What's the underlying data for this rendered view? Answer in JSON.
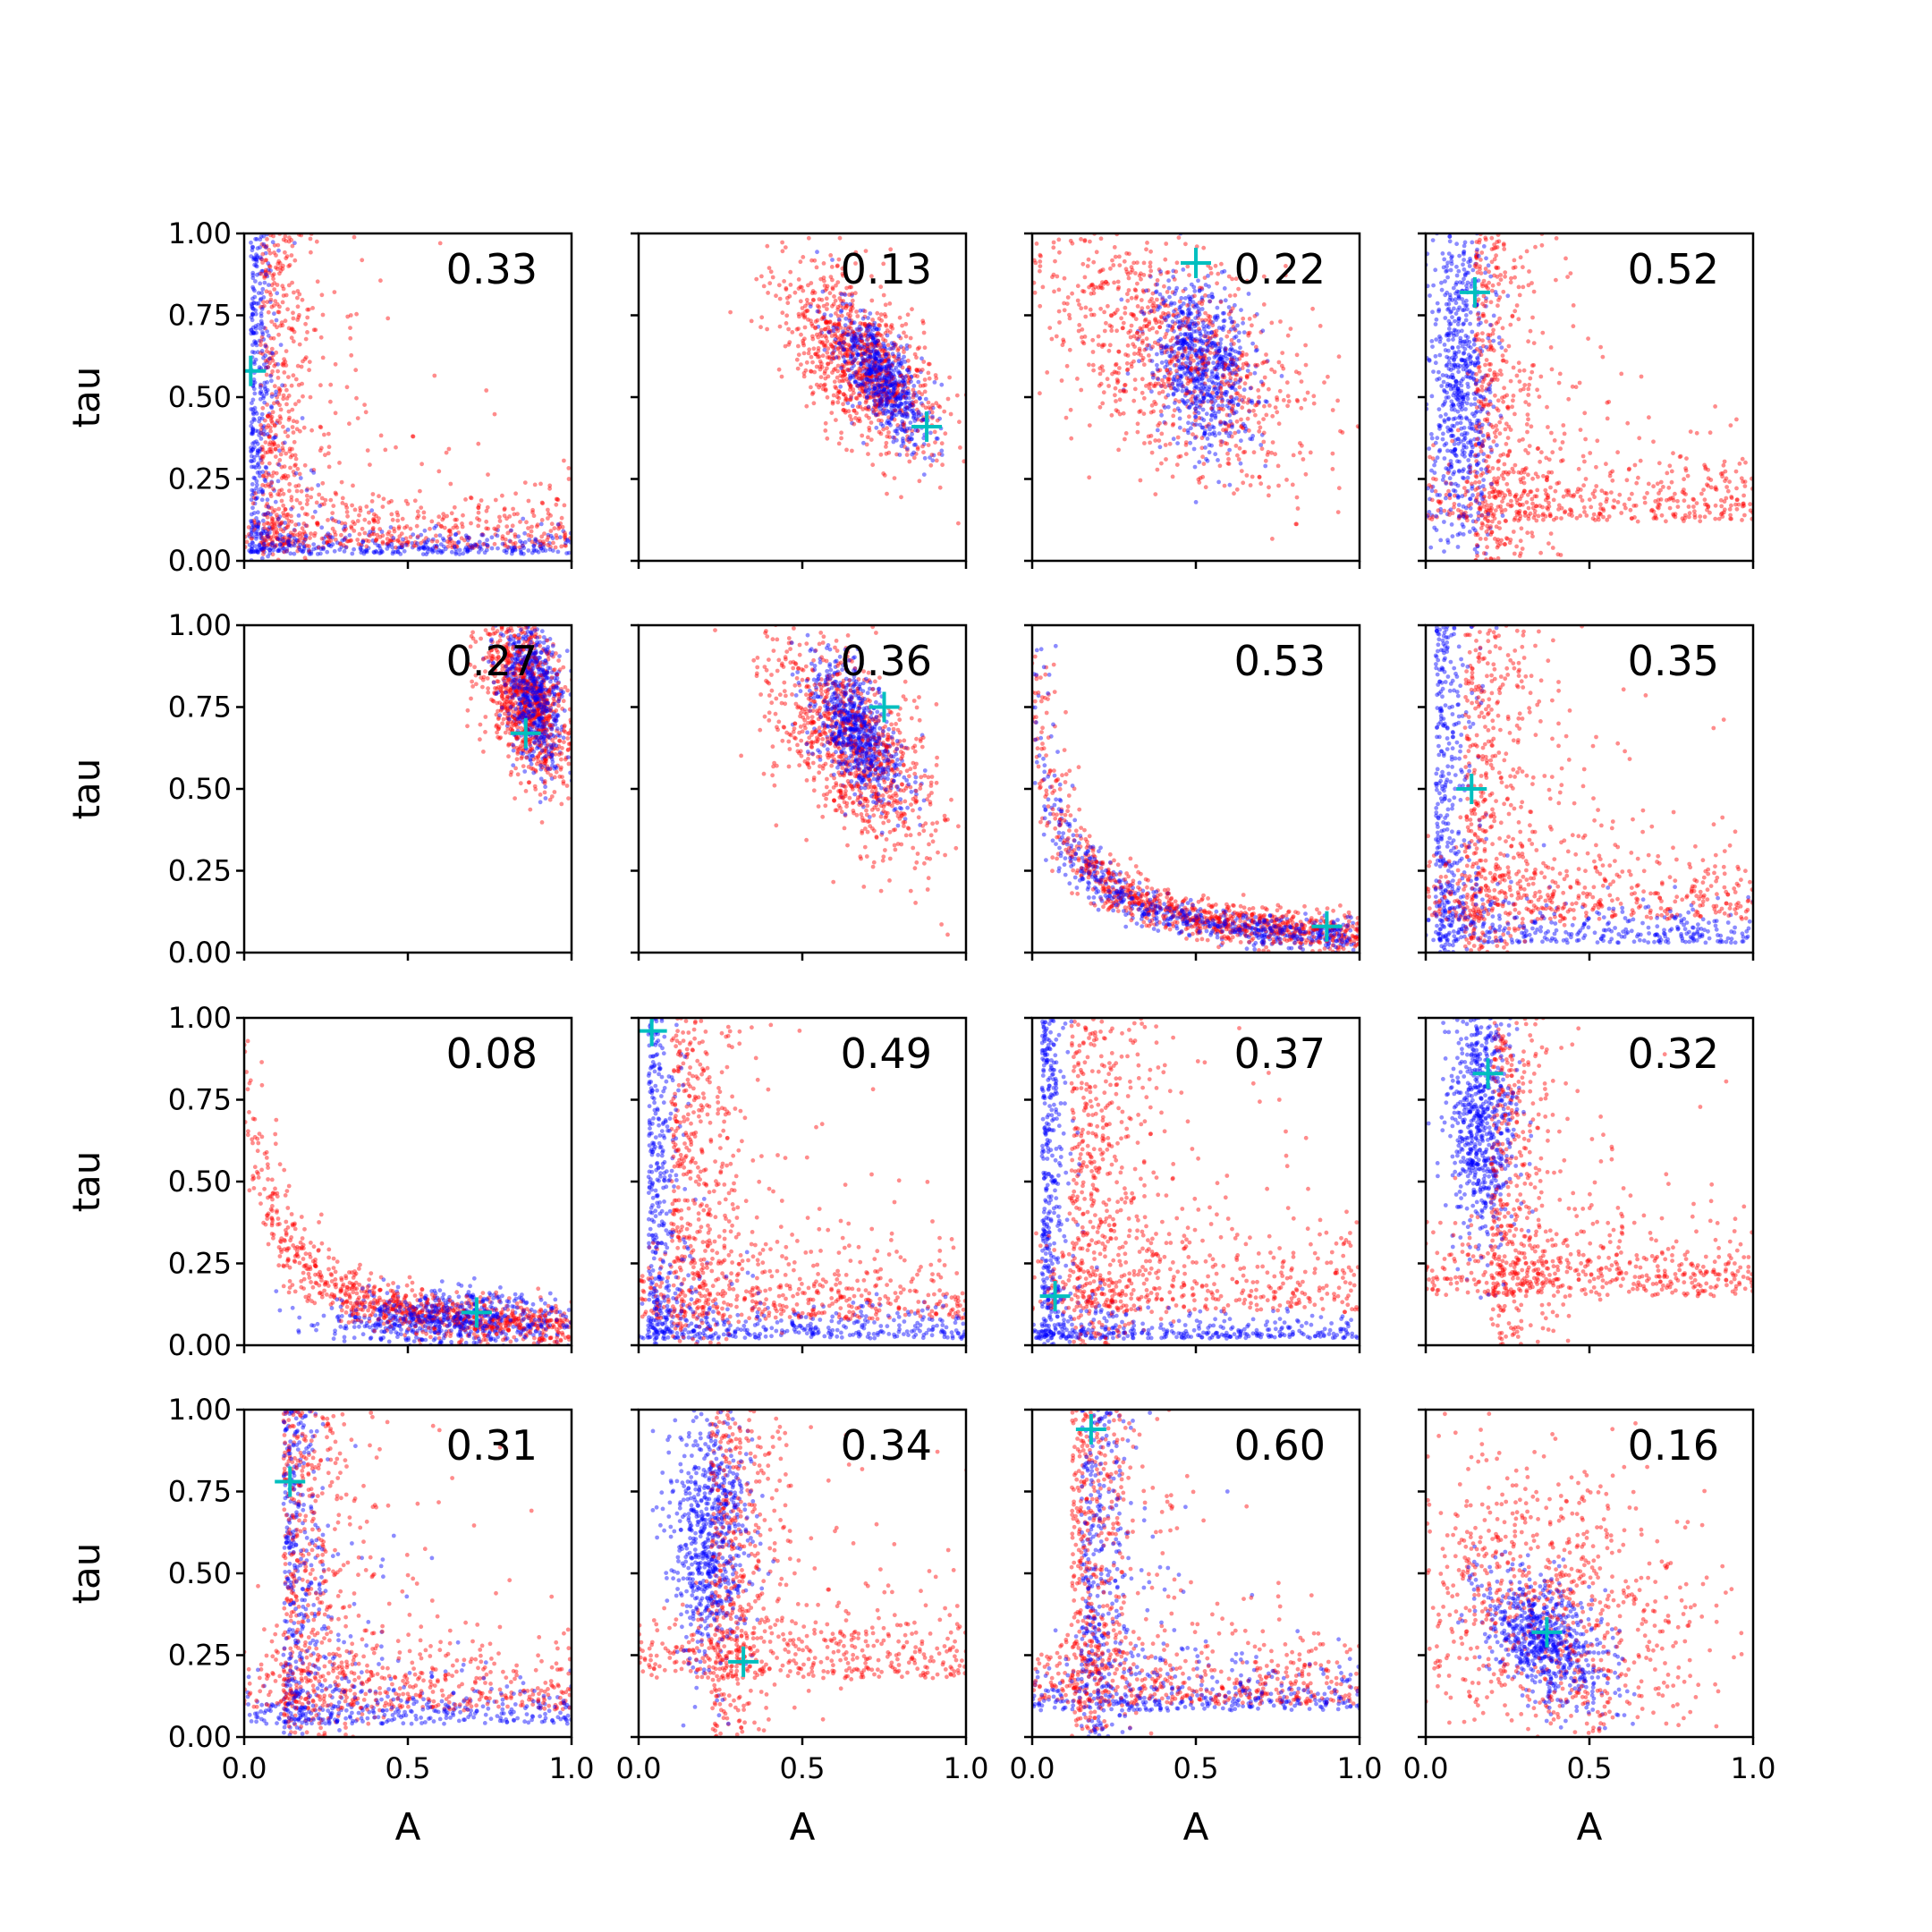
{
  "chart_data": {
    "type": "scatter",
    "layout": {
      "rows": 4,
      "cols": 4
    },
    "xlabel": "A",
    "ylabel": "tau",
    "xlim": [
      0,
      1
    ],
    "ylim": [
      0,
      1
    ],
    "xticks": [
      "0.0",
      "0.5",
      "1.0"
    ],
    "yticks": [
      "0.00",
      "0.25",
      "0.50",
      "0.75",
      "1.00"
    ],
    "grid": false,
    "colors": {
      "prior": "#ff0000",
      "posterior": "#0000ff",
      "truth": "#00bfbf"
    },
    "panels": [
      {
        "label": "0.33",
        "truth": [
          0.02,
          0.58
        ],
        "red": {
          "shape": "L",
          "corner": [
            0.05,
            0.04
          ],
          "spread": 0.32
        },
        "blue": {
          "shape": "L",
          "corner": [
            0.02,
            0.02
          ],
          "spread": 0.12
        }
      },
      {
        "label": "0.13",
        "truth": [
          0.88,
          0.41
        ],
        "red": {
          "shape": "blob",
          "center": [
            0.67,
            0.62
          ],
          "sd": [
            0.12,
            0.14
          ],
          "rho": -0.6
        },
        "blue": {
          "shape": "blob",
          "center": [
            0.74,
            0.56
          ],
          "sd": [
            0.07,
            0.1
          ],
          "rho": -0.7
        }
      },
      {
        "label": "0.22",
        "truth": [
          0.5,
          0.91
        ],
        "red": {
          "shape": "blob",
          "center": [
            0.45,
            0.62
          ],
          "sd": [
            0.22,
            0.2
          ],
          "rho": -0.5
        },
        "blue": {
          "shape": "blob",
          "center": [
            0.52,
            0.6
          ],
          "sd": [
            0.08,
            0.13
          ],
          "rho": -0.3
        }
      },
      {
        "label": "0.52",
        "truth": [
          0.15,
          0.82
        ],
        "red": {
          "shape": "L",
          "corner": [
            0.15,
            0.12
          ],
          "spread": 0.35
        },
        "blue": {
          "shape": "vband",
          "center": [
            0.11,
            0.55
          ],
          "sd": [
            0.05,
            0.3
          ]
        }
      },
      {
        "label": "0.27",
        "truth": [
          0.86,
          0.67
        ],
        "red": {
          "shape": "blob",
          "center": [
            0.86,
            0.78
          ],
          "sd": [
            0.07,
            0.13
          ],
          "rho": -0.5
        },
        "blue": {
          "shape": "blob",
          "center": [
            0.88,
            0.8
          ],
          "sd": [
            0.05,
            0.12
          ],
          "rho": -0.4
        }
      },
      {
        "label": "0.36",
        "truth": [
          0.75,
          0.75
        ],
        "red": {
          "shape": "blob",
          "center": [
            0.66,
            0.62
          ],
          "sd": [
            0.13,
            0.16
          ],
          "rho": -0.6
        },
        "blue": {
          "shape": "blob",
          "center": [
            0.66,
            0.68
          ],
          "sd": [
            0.07,
            0.11
          ],
          "rho": -0.6
        }
      },
      {
        "label": "0.53",
        "truth": [
          0.9,
          0.08
        ],
        "red": {
          "shape": "curve",
          "corner": [
            0.05,
            0.05
          ],
          "spread": 0.25
        },
        "blue": {
          "shape": "curve",
          "corner": [
            0.05,
            0.04
          ],
          "spread": 0.2
        }
      },
      {
        "label": "0.35",
        "truth": [
          0.14,
          0.5
        ],
        "red": {
          "shape": "L",
          "corner": [
            0.12,
            0.1
          ],
          "spread": 0.4
        },
        "blue": {
          "shape": "L",
          "corner": [
            0.03,
            0.03
          ],
          "spread": 0.18
        }
      },
      {
        "label": "0.08",
        "truth": [
          0.71,
          0.1
        ],
        "red": {
          "shape": "curve",
          "corner": [
            0.05,
            0.05
          ],
          "spread": 0.3
        },
        "blue": {
          "shape": "hband",
          "center": [
            0.65,
            0.08
          ],
          "sd": [
            0.2,
            0.04
          ]
        }
      },
      {
        "label": "0.49",
        "truth": [
          0.04,
          0.96
        ],
        "red": {
          "shape": "L",
          "corner": [
            0.1,
            0.08
          ],
          "spread": 0.4
        },
        "blue": {
          "shape": "L",
          "corner": [
            0.03,
            0.02
          ],
          "spread": 0.16
        }
      },
      {
        "label": "0.37",
        "truth": [
          0.07,
          0.15
        ],
        "red": {
          "shape": "L",
          "corner": [
            0.12,
            0.1
          ],
          "spread": 0.45
        },
        "blue": {
          "shape": "L",
          "corner": [
            0.03,
            0.02
          ],
          "spread": 0.12
        }
      },
      {
        "label": "0.32",
        "truth": [
          0.19,
          0.83
        ],
        "red": {
          "shape": "L",
          "corner": [
            0.2,
            0.15
          ],
          "spread": 0.35
        },
        "blue": {
          "shape": "vband",
          "center": [
            0.17,
            0.7
          ],
          "sd": [
            0.05,
            0.2
          ]
        }
      },
      {
        "label": "0.31",
        "truth": [
          0.14,
          0.78
        ],
        "red": {
          "shape": "L",
          "corner": [
            0.12,
            0.08
          ],
          "spread": 0.4
        },
        "blue": {
          "shape": "L",
          "corner": [
            0.12,
            0.04
          ],
          "spread": 0.22
        }
      },
      {
        "label": "0.34",
        "truth": [
          0.32,
          0.23
        ],
        "red": {
          "shape": "L",
          "corner": [
            0.22,
            0.18
          ],
          "spread": 0.4
        },
        "blue": {
          "shape": "vband",
          "center": [
            0.22,
            0.62
          ],
          "sd": [
            0.06,
            0.2
          ]
        }
      },
      {
        "label": "0.60",
        "truth": [
          0.18,
          0.94
        ],
        "red": {
          "shape": "L",
          "corner": [
            0.12,
            0.1
          ],
          "spread": 0.35
        },
        "blue": {
          "shape": "L",
          "corner": [
            0.15,
            0.08
          ],
          "spread": 0.25
        }
      },
      {
        "label": "0.16",
        "truth": [
          0.37,
          0.32
        ],
        "red": {
          "shape": "blob",
          "center": [
            0.38,
            0.38
          ],
          "sd": [
            0.25,
            0.25
          ],
          "rho": -0.3
        },
        "blue": {
          "shape": "blob",
          "center": [
            0.36,
            0.3
          ],
          "sd": [
            0.1,
            0.1
          ],
          "rho": -0.5
        }
      }
    ]
  }
}
